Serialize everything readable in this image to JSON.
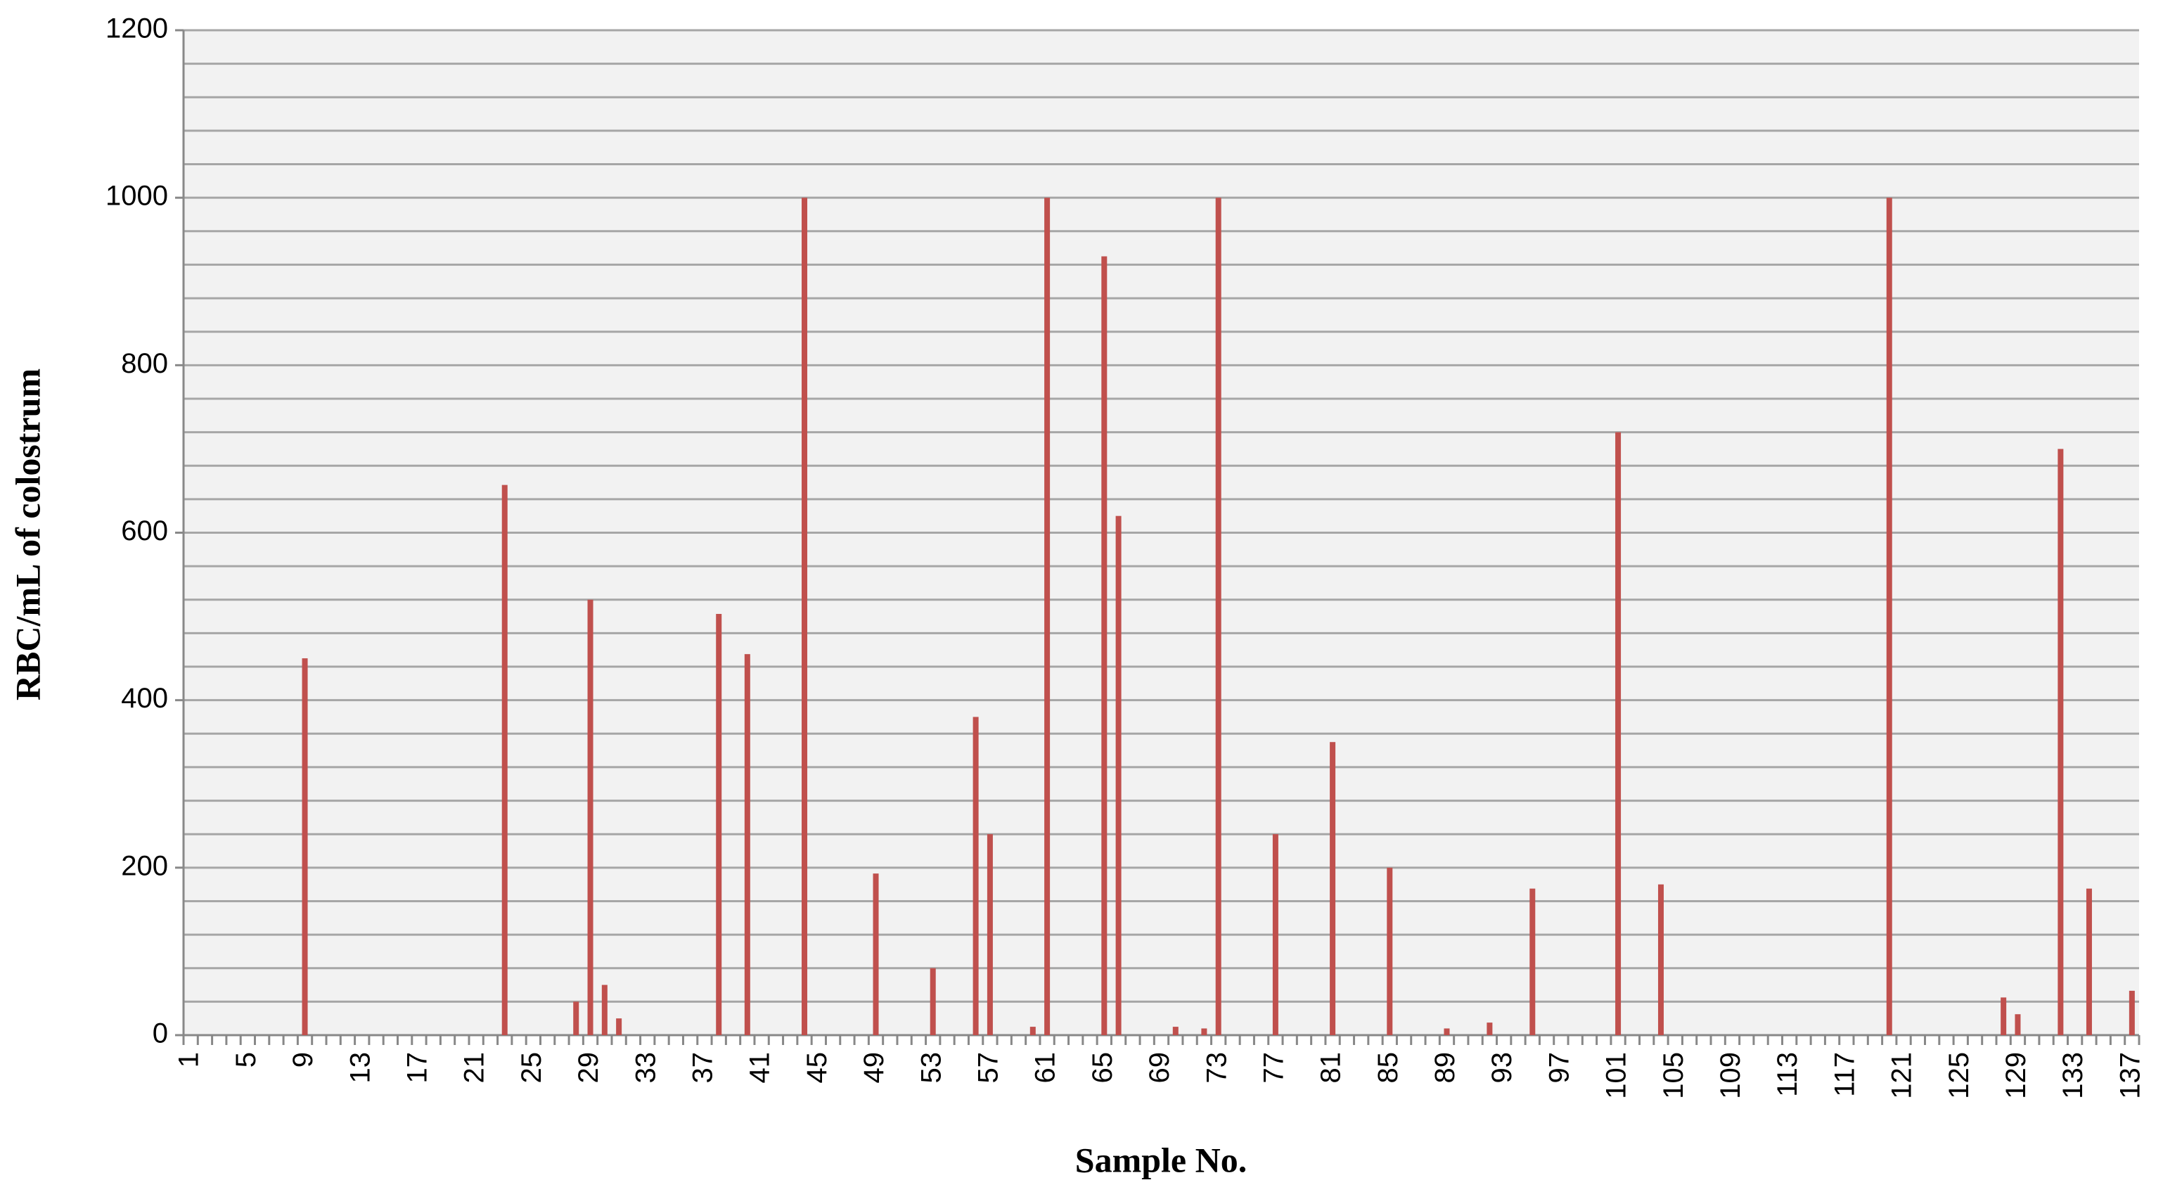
{
  "chart_data": {
    "type": "bar",
    "x_label": "Sample No.",
    "y_label": "RBC/mL of colostrum",
    "categories": [
      "1",
      null,
      null,
      null,
      "5",
      null,
      null,
      null,
      "9",
      null,
      null,
      null,
      "13",
      null,
      null,
      null,
      "17",
      null,
      null,
      null,
      "21",
      null,
      null,
      null,
      "25",
      null,
      null,
      null,
      "29",
      null,
      null,
      null,
      "33",
      null,
      null,
      null,
      "37",
      null,
      null,
      null,
      "41",
      null,
      null,
      null,
      "45",
      null,
      null,
      null,
      "49",
      null,
      null,
      null,
      "53",
      null,
      null,
      null,
      "57",
      null,
      null,
      null,
      "61",
      null,
      null,
      null,
      "65",
      null,
      null,
      null,
      "69",
      null,
      null,
      null,
      "73",
      null,
      null,
      null,
      "77",
      null,
      null,
      null,
      "81",
      null,
      null,
      null,
      "85",
      null,
      null,
      null,
      "89",
      null,
      null,
      null,
      "93",
      null,
      null,
      null,
      "97",
      null,
      null,
      null,
      "101",
      null,
      null,
      null,
      "105",
      null,
      null,
      null,
      "109",
      null,
      null,
      null,
      "113",
      null,
      null,
      null,
      "117",
      null,
      null,
      null,
      "121",
      null,
      null,
      null,
      "125",
      null,
      null,
      null,
      "129",
      null,
      null,
      null,
      "133",
      null,
      null,
      null,
      "137"
    ],
    "values": [
      0,
      0,
      0,
      0,
      0,
      0,
      0,
      0,
      450,
      0,
      0,
      0,
      0,
      0,
      0,
      0,
      0,
      0,
      0,
      0,
      0,
      0,
      657,
      0,
      0,
      0,
      0,
      40,
      520,
      60,
      20,
      0,
      0,
      0,
      0,
      0,
      0,
      503,
      0,
      455,
      0,
      0,
      0,
      1000,
      0,
      0,
      0,
      0,
      193,
      0,
      0,
      0,
      80,
      0,
      0,
      380,
      240,
      0,
      0,
      10,
      1000,
      0,
      0,
      0,
      930,
      620,
      0,
      0,
      0,
      10,
      0,
      8,
      1000,
      0,
      0,
      0,
      240,
      0,
      0,
      0,
      350,
      0,
      0,
      0,
      200,
      0,
      0,
      0,
      8,
      0,
      0,
      15,
      0,
      0,
      175,
      0,
      0,
      0,
      0,
      0,
      720,
      0,
      0,
      180,
      0,
      0,
      0,
      0,
      0,
      0,
      0,
      0,
      0,
      0,
      0,
      0,
      0,
      0,
      0,
      1000,
      0,
      0,
      0,
      0,
      0,
      0,
      0,
      45,
      25,
      0,
      0,
      700,
      0,
      175,
      0,
      0,
      53
    ],
    "color": "#c0504d",
    "ylim": [
      0,
      1200
    ],
    "yticks": [
      0,
      200,
      400,
      600,
      800,
      1000,
      1200
    ],
    "minor_yticks": [
      40,
      80,
      120,
      160,
      240,
      280,
      320,
      360,
      440,
      480,
      520,
      560,
      640,
      680,
      720,
      760,
      840,
      880,
      920,
      960,
      1040,
      1080,
      1120,
      1160
    ],
    "grid": true
  }
}
